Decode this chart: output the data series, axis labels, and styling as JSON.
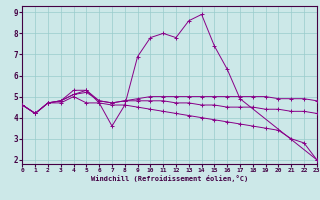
{
  "xlabel": "Windchill (Refroidissement éolien,°C)",
  "bg_color": "#cce8e8",
  "line_color": "#880088",
  "grid_color": "#99cccc",
  "series": [
    {
      "x": [
        0,
        1,
        2,
        3,
        4,
        5,
        6,
        7,
        8,
        9,
        10,
        11,
        12,
        13,
        14,
        15,
        16,
        17,
        23
      ],
      "y": [
        4.6,
        4.2,
        4.7,
        4.8,
        5.3,
        5.3,
        4.7,
        3.6,
        4.6,
        6.9,
        7.8,
        8.0,
        7.8,
        8.6,
        8.9,
        7.4,
        6.3,
        4.9,
        2.0
      ]
    },
    {
      "x": [
        0,
        1,
        2,
        3,
        4,
        5,
        6,
        7,
        8,
        9,
        10,
        11,
        12,
        13,
        14,
        15,
        16,
        17,
        18,
        19,
        20,
        21,
        22,
        23
      ],
      "y": [
        4.6,
        4.2,
        4.7,
        4.8,
        5.1,
        5.3,
        4.8,
        4.7,
        4.8,
        4.9,
        5.0,
        5.0,
        5.0,
        5.0,
        5.0,
        5.0,
        5.0,
        5.0,
        5.0,
        5.0,
        4.9,
        4.9,
        4.9,
        4.8
      ]
    },
    {
      "x": [
        0,
        1,
        2,
        3,
        4,
        5,
        6,
        7,
        8,
        9,
        10,
        11,
        12,
        13,
        14,
        15,
        16,
        17,
        18,
        19,
        20,
        21,
        22,
        23
      ],
      "y": [
        4.6,
        4.2,
        4.7,
        4.8,
        5.1,
        5.2,
        4.8,
        4.7,
        4.8,
        4.8,
        4.8,
        4.8,
        4.7,
        4.7,
        4.6,
        4.6,
        4.5,
        4.5,
        4.5,
        4.4,
        4.4,
        4.3,
        4.3,
        4.2
      ]
    },
    {
      "x": [
        0,
        1,
        2,
        3,
        4,
        5,
        6,
        7,
        8,
        9,
        10,
        11,
        12,
        13,
        14,
        15,
        16,
        17,
        18,
        19,
        20,
        21,
        22,
        23
      ],
      "y": [
        4.6,
        4.2,
        4.7,
        4.7,
        5.0,
        4.7,
        4.7,
        4.6,
        4.6,
        4.5,
        4.4,
        4.3,
        4.2,
        4.1,
        4.0,
        3.9,
        3.8,
        3.7,
        3.6,
        3.5,
        3.4,
        3.0,
        2.8,
        2.0
      ]
    }
  ],
  "xlim": [
    0,
    23
  ],
  "ylim": [
    1.8,
    9.3
  ],
  "yticks": [
    2,
    3,
    4,
    5,
    6,
    7,
    8,
    9
  ],
  "xticks": [
    0,
    1,
    2,
    3,
    4,
    5,
    6,
    7,
    8,
    9,
    10,
    11,
    12,
    13,
    14,
    15,
    16,
    17,
    18,
    19,
    20,
    21,
    22,
    23
  ]
}
